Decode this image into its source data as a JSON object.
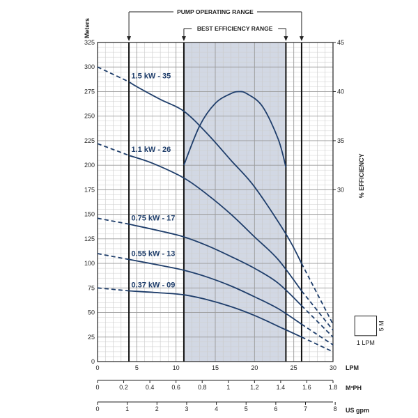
{
  "chart_data": {
    "type": "line",
    "title": "",
    "pump_operating_range_label": "PUMP OPERATING RANGE",
    "best_efficiency_range_label": "BEST EFFICIENCY RANGE",
    "pump_operating_range_lpm": [
      4,
      26
    ],
    "best_efficiency_range_lpm": [
      11,
      24
    ],
    "ylabel_left": "Meters",
    "ylabel_right": "% EFFICIENCY",
    "x_primary_label": "LPM",
    "x_secondary_label": "M³PH",
    "x_tertiary_label": "US gpm",
    "xlim": [
      0,
      30
    ],
    "ylim": [
      0,
      325
    ],
    "y2lim_display": [
      30,
      45
    ],
    "x_ticks": [
      "0",
      "5",
      "10",
      "15",
      "20",
      "25",
      "30"
    ],
    "y_ticks": [
      "0",
      "25",
      "50",
      "75",
      "100",
      "125",
      "150",
      "175",
      "200",
      "225",
      "250",
      "275",
      "300",
      "325"
    ],
    "y2_ticks": [
      "30",
      "35",
      "40",
      "45"
    ],
    "m3ph_ticks": [
      "0",
      "0.2",
      "0.4",
      "0.6",
      "0.8",
      "1",
      "1.2",
      "1.4",
      "1.6",
      "1.8"
    ],
    "usgpm_ticks": [
      "0",
      "1",
      "2",
      "3",
      "4",
      "5",
      "6",
      "7",
      "8"
    ],
    "grid": true,
    "scale_box_labels": [
      "5 M",
      "1 LPM"
    ],
    "series": [
      {
        "name": "1.5 kW - 35",
        "points": [
          [
            0,
            300
          ],
          [
            4,
            285
          ],
          [
            5,
            280
          ],
          [
            8,
            267
          ],
          [
            11,
            255
          ],
          [
            14,
            232
          ],
          [
            17,
            205
          ],
          [
            20,
            178
          ],
          [
            24,
            130
          ],
          [
            26,
            100
          ],
          [
            30,
            38
          ]
        ],
        "solid_range": [
          4,
          26
        ]
      },
      {
        "name": "1.1 kW - 26",
        "points": [
          [
            0,
            222
          ],
          [
            4,
            210
          ],
          [
            7,
            202
          ],
          [
            11,
            187
          ],
          [
            14,
            170
          ],
          [
            17,
            150
          ],
          [
            20,
            127
          ],
          [
            23,
            104
          ],
          [
            26,
            72
          ],
          [
            30,
            32
          ]
        ],
        "solid_range": [
          4,
          26
        ]
      },
      {
        "name": "0.75 kW - 17",
        "points": [
          [
            0,
            146
          ],
          [
            4,
            140
          ],
          [
            8,
            133
          ],
          [
            11,
            127
          ],
          [
            14,
            118
          ],
          [
            17,
            107
          ],
          [
            20,
            95
          ],
          [
            23,
            80
          ],
          [
            26,
            57
          ],
          [
            30,
            25
          ]
        ],
        "solid_range": [
          4,
          26
        ]
      },
      {
        "name": "0.55 kW - 13",
        "points": [
          [
            0,
            110
          ],
          [
            4,
            104
          ],
          [
            8,
            98
          ],
          [
            11,
            93
          ],
          [
            14,
            86
          ],
          [
            17,
            77
          ],
          [
            20,
            66
          ],
          [
            23,
            54
          ],
          [
            26,
            38
          ],
          [
            30,
            17
          ]
        ],
        "solid_range": [
          4,
          26
        ]
      },
      {
        "name": "0.37 kW - 09",
        "points": [
          [
            0,
            75
          ],
          [
            4,
            72
          ],
          [
            8,
            70
          ],
          [
            11,
            68
          ],
          [
            14,
            63
          ],
          [
            17,
            56
          ],
          [
            20,
            47
          ],
          [
            23,
            36
          ],
          [
            26,
            25
          ],
          [
            30,
            10
          ]
        ],
        "solid_range": [
          4,
          26
        ]
      }
    ],
    "efficiency_curve": {
      "name": "% EFFICIENCY",
      "points": [
        [
          11,
          32.5
        ],
        [
          13,
          36.5
        ],
        [
          15,
          38.8
        ],
        [
          17,
          39.8
        ],
        [
          18,
          40.0
        ],
        [
          19,
          39.8
        ],
        [
          21,
          38.5
        ],
        [
          23,
          35.2
        ],
        [
          24,
          32.3
        ]
      ]
    }
  }
}
